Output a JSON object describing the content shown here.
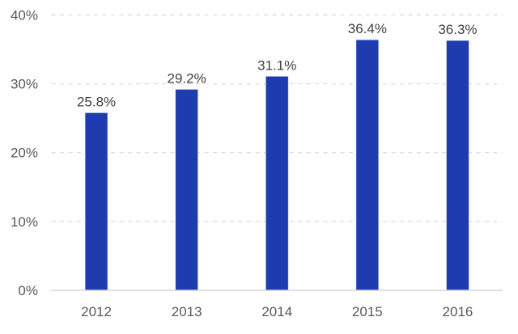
{
  "chart_data": {
    "type": "bar",
    "title": "",
    "subtitle": "",
    "xlabel": "",
    "ylabel": "",
    "categories": [
      "2012",
      "2013",
      "2014",
      "2015",
      "2016"
    ],
    "values": [
      25.8,
      29.2,
      31.1,
      36.4,
      36.3
    ],
    "data_labels": [
      "25.8%",
      "29.2%",
      "31.1%",
      "36.4%",
      "36.3%"
    ],
    "y_ticks": [
      {
        "value": 0,
        "label": "0%"
      },
      {
        "value": 10,
        "label": "10%"
      },
      {
        "value": 20,
        "label": "20%"
      },
      {
        "value": 30,
        "label": "30%"
      },
      {
        "value": 40,
        "label": "40%"
      }
    ],
    "ylim": [
      0,
      40
    ],
    "grid": {
      "horizontal": true,
      "vertical": false,
      "style": "dashed"
    },
    "legend": "none",
    "colors": {
      "bar_fill": "#1e3cb0",
      "bar_edge": "#dde2f4",
      "gridline": "#dcdcdc",
      "axis_line": "#d6d6d6",
      "tick_label": "#595959",
      "data_label": "#404040",
      "background": "#ffffff"
    }
  }
}
